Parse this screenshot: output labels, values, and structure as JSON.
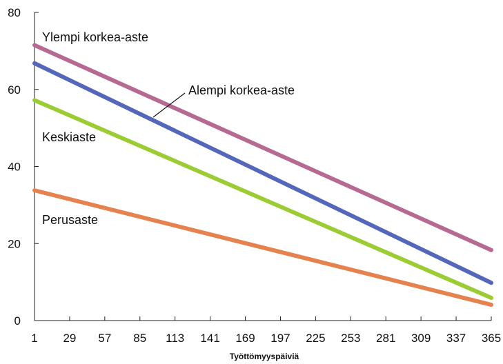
{
  "chart_data": {
    "type": "line",
    "xlabel": "Työttömyyspäiviä",
    "ylabel": "",
    "x_ticks": [
      1,
      29,
      57,
      85,
      113,
      141,
      169,
      197,
      225,
      253,
      281,
      309,
      337,
      365
    ],
    "y_ticks": [
      0,
      20,
      40,
      60,
      80
    ],
    "xlim": [
      1,
      365
    ],
    "ylim": [
      0,
      80
    ],
    "grid": false,
    "legend": "inline labels",
    "series": [
      {
        "name": "Ylempi korkea-aste",
        "color": "#b66a92",
        "x": [
          1,
          365
        ],
        "values": [
          71.5,
          18.3
        ]
      },
      {
        "name": "Alempi korkea-aste",
        "color": "#5567bb",
        "x": [
          1,
          365
        ],
        "values": [
          66.8,
          9.8
        ]
      },
      {
        "name": "Keskiaste",
        "color": "#9ccc34",
        "x": [
          1,
          365
        ],
        "values": [
          57.2,
          5.9
        ]
      },
      {
        "name": "Perusaste",
        "color": "#e5824e",
        "x": [
          1,
          365
        ],
        "values": [
          33.8,
          4.1
        ]
      }
    ]
  }
}
